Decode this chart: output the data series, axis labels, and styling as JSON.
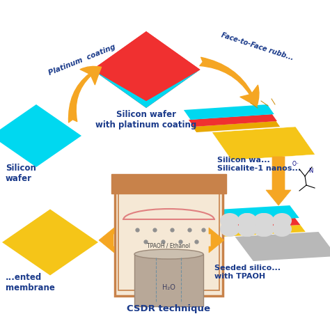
{
  "bg_color": "#ffffff",
  "arrow_color": "#f5a623",
  "text_color": "#1a3a8a",
  "cyan_color": "#00d8f0",
  "red_color": "#f03030",
  "gold_color": "#f5c518",
  "gray_color": "#b8b8b8",
  "light_gray": "#d8d8d8",
  "orange_border": "#c8824a",
  "beige_fill": "#f5e8d5",
  "cyl_color": "#b8a898",
  "cyl_dark": "#9a8878",
  "tpaoh_label": "TPAOH / Ethanol",
  "h2o_label": "H₂O",
  "csdr_label": "CSDR technique",
  "label1": "Silicon wafer\nwith platinum coating",
  "label2": "Silicon wa...\nSilicalite-1 nanos...",
  "label3": "Seeded silico...\nwith TPAOH",
  "label4": "...ented\nmembrane",
  "label5": "Silicon\nwafer",
  "arrow1": "Platinum  coating",
  "arrow2": "Face-to-Face rubb..."
}
